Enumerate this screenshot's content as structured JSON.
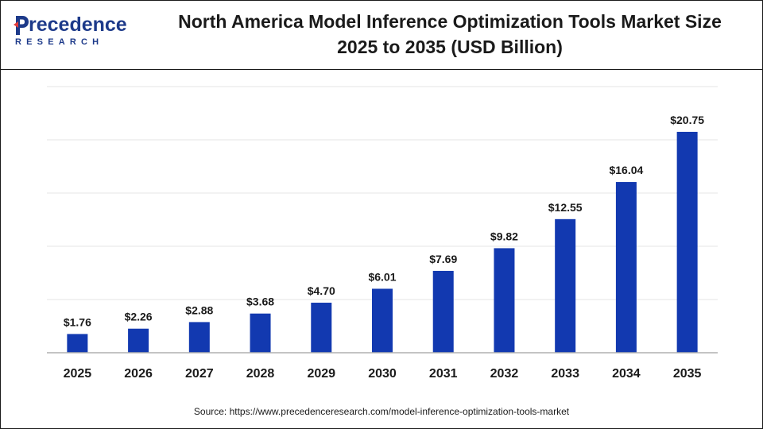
{
  "header": {
    "logo_word": "recedence",
    "logo_sub": "RESEARCH",
    "title_line1": "North America Model Inference Optimization Tools Market Size",
    "title_line2": "2025 to 2035 (USD Billion)"
  },
  "source": "Source: https://www.precedenceresearch.com/model-inference-optimization-tools-market",
  "colors": {
    "bar": "#1239b0",
    "brand": "#1d3a8a",
    "grid": "#e6e6e6",
    "axis": "#b0b0b0"
  },
  "chart_data": {
    "type": "bar",
    "title": "North America Model Inference Optimization Tools Market Size 2025 to 2035 (USD Billion)",
    "categories": [
      "2025",
      "2026",
      "2027",
      "2028",
      "2029",
      "2030",
      "2031",
      "2032",
      "2033",
      "2034",
      "2035"
    ],
    "values": [
      1.76,
      2.26,
      2.88,
      3.68,
      4.7,
      6.01,
      7.69,
      9.82,
      12.55,
      16.04,
      20.75
    ],
    "value_labels": [
      "$1.76",
      "$2.26",
      "$2.88",
      "$3.68",
      "$4.70",
      "$6.01",
      "$7.69",
      "$9.82",
      "$12.55",
      "$16.04",
      "$20.75"
    ],
    "xlabel": "",
    "ylabel": "",
    "ylim": [
      0,
      25
    ],
    "grid": true,
    "legend": "none"
  }
}
